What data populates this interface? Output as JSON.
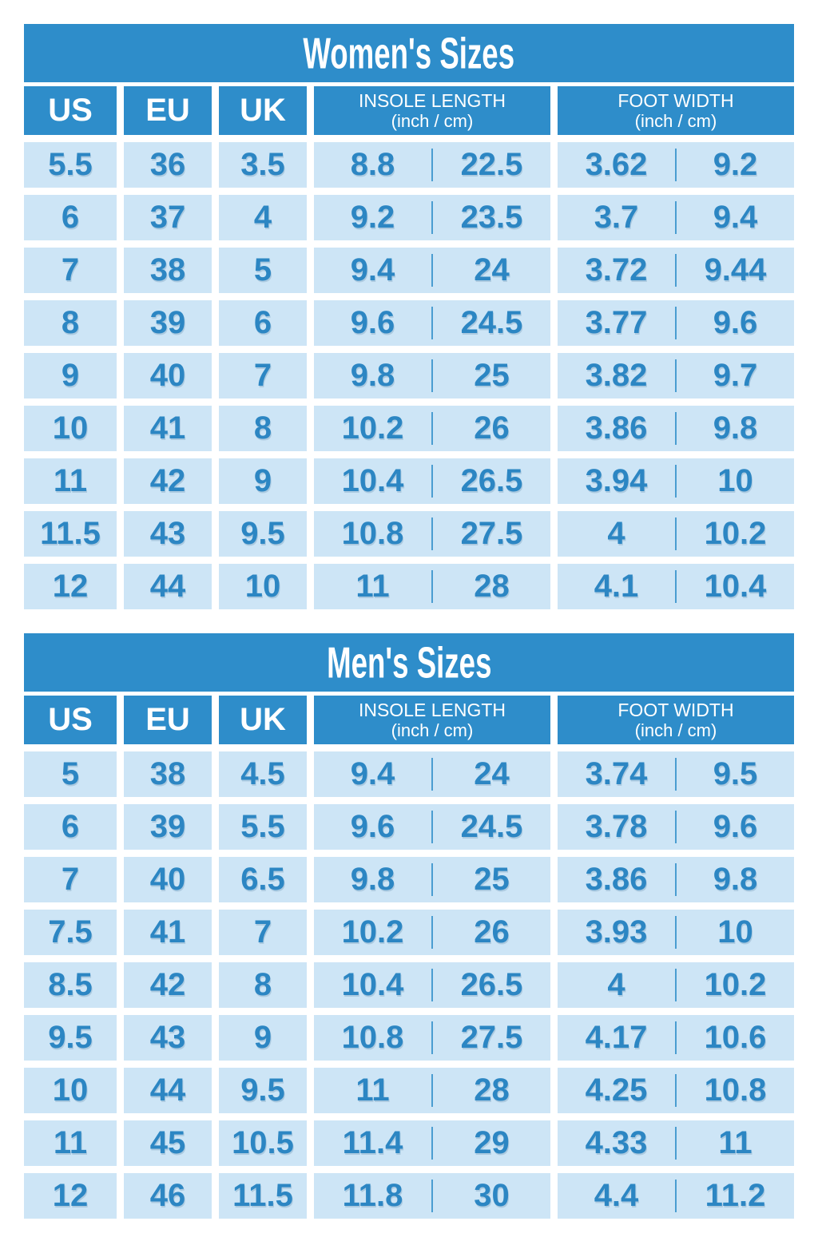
{
  "palette": {
    "header_bg": "#2E8DCA",
    "cell_bg": "#CDE5F6",
    "num_text": "#2C86C3",
    "header_text": "#FFFFFF",
    "divider": "#4A9DD1",
    "page_bg": "#FFFFFF"
  },
  "chart_data": [
    {
      "type": "table",
      "title": "Women's Sizes",
      "column_headers": {
        "us": "US",
        "eu": "EU",
        "uk": "UK",
        "insole_line1": "INSOLE LENGTH",
        "insole_line2": "(inch / cm)",
        "foot_line1": "FOOT WIDTH",
        "foot_line2": "(inch / cm)"
      },
      "rows": [
        {
          "us": "5.5",
          "eu": "36",
          "uk": "3.5",
          "insole_inch": "8.8",
          "insole_cm": "22.5",
          "width_inch": "3.62",
          "width_cm": "9.2"
        },
        {
          "us": "6",
          "eu": "37",
          "uk": "4",
          "insole_inch": "9.2",
          "insole_cm": "23.5",
          "width_inch": "3.7",
          "width_cm": "9.4"
        },
        {
          "us": "7",
          "eu": "38",
          "uk": "5",
          "insole_inch": "9.4",
          "insole_cm": "24",
          "width_inch": "3.72",
          "width_cm": "9.44"
        },
        {
          "us": "8",
          "eu": "39",
          "uk": "6",
          "insole_inch": "9.6",
          "insole_cm": "24.5",
          "width_inch": "3.77",
          "width_cm": "9.6"
        },
        {
          "us": "9",
          "eu": "40",
          "uk": "7",
          "insole_inch": "9.8",
          "insole_cm": "25",
          "width_inch": "3.82",
          "width_cm": "9.7"
        },
        {
          "us": "10",
          "eu": "41",
          "uk": "8",
          "insole_inch": "10.2",
          "insole_cm": "26",
          "width_inch": "3.86",
          "width_cm": "9.8"
        },
        {
          "us": "11",
          "eu": "42",
          "uk": "9",
          "insole_inch": "10.4",
          "insole_cm": "26.5",
          "width_inch": "3.94",
          "width_cm": "10"
        },
        {
          "us": "11.5",
          "eu": "43",
          "uk": "9.5",
          "insole_inch": "10.8",
          "insole_cm": "27.5",
          "width_inch": "4",
          "width_cm": "10.2"
        },
        {
          "us": "12",
          "eu": "44",
          "uk": "10",
          "insole_inch": "11",
          "insole_cm": "28",
          "width_inch": "4.1",
          "width_cm": "10.4"
        }
      ]
    },
    {
      "type": "table",
      "title": "Men's Sizes",
      "column_headers": {
        "us": "US",
        "eu": "EU",
        "uk": "UK",
        "insole_line1": "INSOLE LENGTH",
        "insole_line2": "(inch / cm)",
        "foot_line1": "FOOT WIDTH",
        "foot_line2": "(inch / cm)"
      },
      "rows": [
        {
          "us": "5",
          "eu": "38",
          "uk": "4.5",
          "insole_inch": "9.4",
          "insole_cm": "24",
          "width_inch": "3.74",
          "width_cm": "9.5"
        },
        {
          "us": "6",
          "eu": "39",
          "uk": "5.5",
          "insole_inch": "9.6",
          "insole_cm": "24.5",
          "width_inch": "3.78",
          "width_cm": "9.6"
        },
        {
          "us": "7",
          "eu": "40",
          "uk": "6.5",
          "insole_inch": "9.8",
          "insole_cm": "25",
          "width_inch": "3.86",
          "width_cm": "9.8"
        },
        {
          "us": "7.5",
          "eu": "41",
          "uk": "7",
          "insole_inch": "10.2",
          "insole_cm": "26",
          "width_inch": "3.93",
          "width_cm": "10"
        },
        {
          "us": "8.5",
          "eu": "42",
          "uk": "8",
          "insole_inch": "10.4",
          "insole_cm": "26.5",
          "width_inch": "4",
          "width_cm": "10.2"
        },
        {
          "us": "9.5",
          "eu": "43",
          "uk": "9",
          "insole_inch": "10.8",
          "insole_cm": "27.5",
          "width_inch": "4.17",
          "width_cm": "10.6"
        },
        {
          "us": "10",
          "eu": "44",
          "uk": "9.5",
          "insole_inch": "11",
          "insole_cm": "28",
          "width_inch": "4.25",
          "width_cm": "10.8"
        },
        {
          "us": "11",
          "eu": "45",
          "uk": "10.5",
          "insole_inch": "11.4",
          "insole_cm": "29",
          "width_inch": "4.33",
          "width_cm": "11"
        },
        {
          "us": "12",
          "eu": "46",
          "uk": "11.5",
          "insole_inch": "11.8",
          "insole_cm": "30",
          "width_inch": "4.4",
          "width_cm": "11.2"
        }
      ]
    }
  ]
}
